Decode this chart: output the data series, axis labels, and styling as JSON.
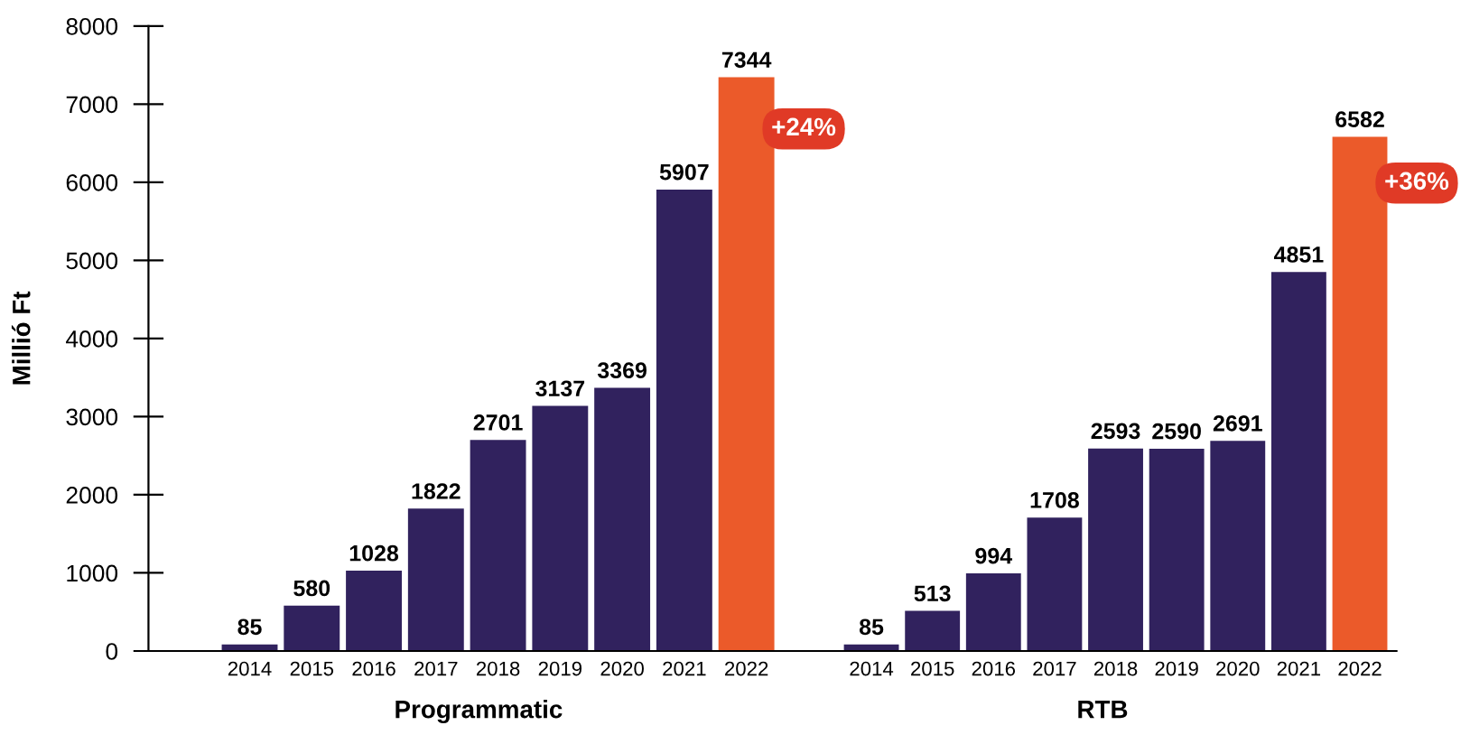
{
  "chart_data": [
    {
      "type": "bar",
      "xlabel": "Programmatic",
      "ylabel": "Millió Ft",
      "categories": [
        "2014",
        "2015",
        "2016",
        "2017",
        "2018",
        "2019",
        "2020",
        "2021",
        "2022"
      ],
      "values": [
        85,
        580,
        1028,
        1822,
        2701,
        3137,
        3369,
        5907,
        7344
      ],
      "colors": [
        "#31225e",
        "#31225e",
        "#31225e",
        "#31225e",
        "#31225e",
        "#31225e",
        "#31225e",
        "#31225e",
        "#eb5a2a"
      ],
      "ylim": [
        0,
        8000
      ],
      "yticks": [
        0,
        1000,
        2000,
        3000,
        4000,
        5000,
        6000,
        7000,
        8000
      ],
      "data_labels": true,
      "grid": false,
      "legend": false,
      "annotations": [
        "+24%"
      ]
    },
    {
      "type": "bar",
      "xlabel": "RTB",
      "categories": [
        "2014",
        "2015",
        "2016",
        "2017",
        "2018",
        "2019",
        "2020",
        "2021",
        "2022"
      ],
      "values": [
        85,
        513,
        994,
        1708,
        2593,
        2590,
        2691,
        4851,
        6582
      ],
      "colors": [
        "#31225e",
        "#31225e",
        "#31225e",
        "#31225e",
        "#31225e",
        "#31225e",
        "#31225e",
        "#31225e",
        "#eb5a2a"
      ],
      "ylim": [
        0,
        8000
      ],
      "yticks": [
        0,
        1000,
        2000,
        3000,
        4000,
        5000,
        6000,
        7000,
        8000
      ],
      "tick_labels": "x",
      "data_labels": true,
      "grid": false,
      "legend": false,
      "annotations": [
        "+36%"
      ]
    }
  ]
}
